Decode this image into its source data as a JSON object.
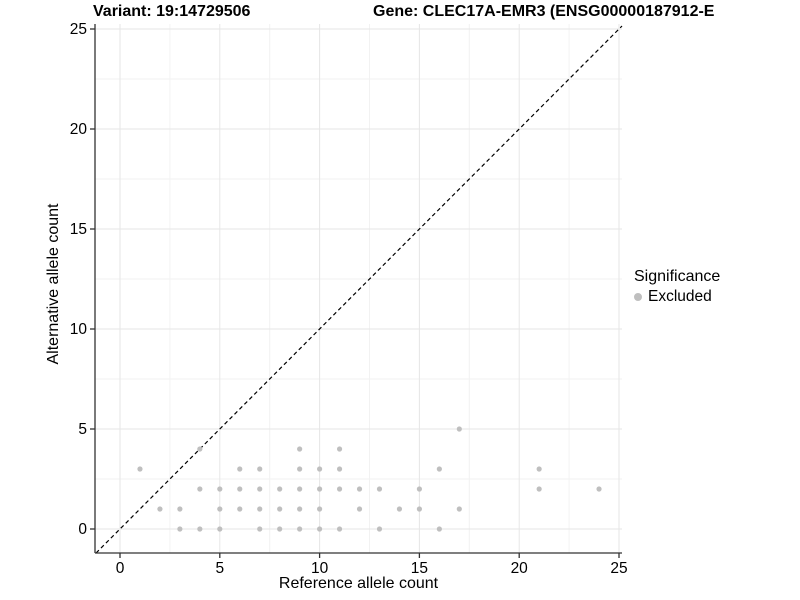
{
  "chart_data": {
    "type": "scatter",
    "title_left": "Variant: 19:14729506",
    "title_right": "Gene: CLEC17A-EMR3 (ENSG00000187912-E",
    "xlabel": "Reference allele count",
    "ylabel": "Alternative allele count",
    "xlim": [
      0,
      25
    ],
    "ylim": [
      0,
      25
    ],
    "x_ticks": [
      0,
      5,
      10,
      15,
      20,
      25
    ],
    "y_ticks": [
      0,
      5,
      10,
      15,
      20,
      25
    ],
    "minor_ticks": [
      2.5,
      7.5,
      12.5,
      17.5,
      22.5
    ],
    "grid": "major and minor, light gray, on white panel",
    "identity_line": {
      "type": "dashed y=x line",
      "color": "#000000"
    },
    "series": [
      {
        "name": "Excluded",
        "color": "#bfbfbf",
        "points": [
          [
            3,
            0
          ],
          [
            4,
            0
          ],
          [
            5,
            0
          ],
          [
            7,
            0
          ],
          [
            8,
            0
          ],
          [
            9,
            0
          ],
          [
            10,
            0
          ],
          [
            11,
            0
          ],
          [
            13,
            0
          ],
          [
            16,
            0
          ],
          [
            2,
            1
          ],
          [
            3,
            1
          ],
          [
            5,
            1
          ],
          [
            6,
            1
          ],
          [
            7,
            1
          ],
          [
            8,
            1
          ],
          [
            9,
            1
          ],
          [
            10,
            1
          ],
          [
            12,
            1
          ],
          [
            14,
            1
          ],
          [
            15,
            1
          ],
          [
            17,
            1
          ],
          [
            4,
            2
          ],
          [
            5,
            2
          ],
          [
            6,
            2
          ],
          [
            7,
            2
          ],
          [
            8,
            2
          ],
          [
            9,
            2
          ],
          [
            10,
            2
          ],
          [
            11,
            2
          ],
          [
            12,
            2
          ],
          [
            13,
            2
          ],
          [
            15,
            2
          ],
          [
            21,
            2
          ],
          [
            24,
            2
          ],
          [
            1,
            3
          ],
          [
            6,
            3
          ],
          [
            7,
            3
          ],
          [
            9,
            3
          ],
          [
            10,
            3
          ],
          [
            11,
            3
          ],
          [
            16,
            3
          ],
          [
            21,
            3
          ],
          [
            4,
            4
          ],
          [
            9,
            4
          ],
          [
            11,
            4
          ],
          [
            17,
            5
          ]
        ]
      }
    ],
    "legend": {
      "title": "Significance",
      "position": "right",
      "items": [
        {
          "label": "Excluded",
          "color": "#bfbfbf"
        }
      ]
    }
  }
}
